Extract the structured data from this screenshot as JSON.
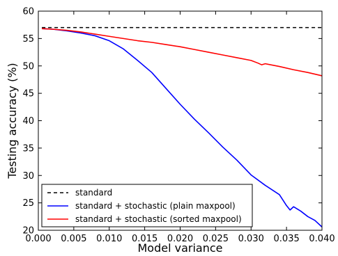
{
  "chart_data": {
    "type": "line",
    "title": "",
    "xlabel": "Model variance",
    "ylabel": "Testing accuracy (%)",
    "xlim": [
      0.0,
      0.04
    ],
    "ylim": [
      20,
      60
    ],
    "x_ticks": [
      "0.000",
      "0.005",
      "0.010",
      "0.015",
      "0.020",
      "0.025",
      "0.030",
      "0.035",
      "0.040"
    ],
    "y_ticks": [
      "20",
      "25",
      "30",
      "35",
      "40",
      "45",
      "50",
      "55",
      "60"
    ],
    "x_tick_values": [
      0.0,
      0.005,
      0.01,
      0.015,
      0.02,
      0.025,
      0.03,
      0.035,
      0.04
    ],
    "y_tick_values": [
      20,
      25,
      30,
      35,
      40,
      45,
      50,
      55,
      60
    ],
    "grid": false,
    "legend_position": "lower-left",
    "series": [
      {
        "name": "standard",
        "color": "#000000",
        "style": "dashed",
        "x": [
          0.0005,
          0.04
        ],
        "y": [
          57.0,
          57.0
        ]
      },
      {
        "name": "standard + stochastic (plain maxpool)",
        "color": "#0000ff",
        "style": "solid",
        "x": [
          0.0005,
          0.002,
          0.004,
          0.006,
          0.008,
          0.01,
          0.012,
          0.014,
          0.016,
          0.018,
          0.02,
          0.022,
          0.024,
          0.026,
          0.028,
          0.03,
          0.032,
          0.034,
          0.035,
          0.0355,
          0.036,
          0.037,
          0.038,
          0.039,
          0.04
        ],
        "y": [
          56.8,
          56.7,
          56.4,
          56.0,
          55.5,
          54.6,
          53.1,
          51.0,
          48.8,
          45.9,
          43.0,
          40.3,
          37.8,
          35.2,
          32.8,
          30.1,
          28.2,
          26.5,
          24.5,
          23.7,
          24.3,
          23.5,
          22.5,
          21.8,
          20.6
        ]
      },
      {
        "name": "standard + stochastic (sorted maxpool)",
        "color": "#ff0000",
        "style": "solid",
        "x": [
          0.0005,
          0.002,
          0.004,
          0.006,
          0.008,
          0.01,
          0.012,
          0.014,
          0.016,
          0.018,
          0.02,
          0.022,
          0.024,
          0.026,
          0.028,
          0.03,
          0.031,
          0.0315,
          0.032,
          0.034,
          0.036,
          0.038,
          0.04
        ],
        "y": [
          56.8,
          56.7,
          56.5,
          56.2,
          55.8,
          55.4,
          55.0,
          54.6,
          54.3,
          53.9,
          53.5,
          53.0,
          52.5,
          52.0,
          51.5,
          51.0,
          50.5,
          50.2,
          50.4,
          49.9,
          49.3,
          48.8,
          48.2
        ]
      }
    ]
  }
}
